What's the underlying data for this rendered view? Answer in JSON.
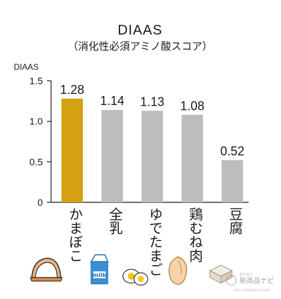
{
  "chart_data": {
    "type": "bar",
    "title": "DIAAS",
    "subtitle": "（消化性必須アミノ酸スコア）",
    "ylabel": "DIAAS",
    "ylim": [
      0,
      1.5
    ],
    "yticks": [
      "0",
      "0.5",
      "1.0",
      "1.5"
    ],
    "grid": false,
    "categories": [
      "かまぼこ",
      "全乳",
      "ゆでたまご",
      "鶏むね肉",
      "豆腐"
    ],
    "values": [
      1.28,
      1.14,
      1.13,
      1.08,
      0.52
    ],
    "value_labels": [
      "1.28",
      "1.14",
      "1.13",
      "1.08",
      "0.52"
    ],
    "colors": [
      "#D4A210",
      "#BDBDBD",
      "#BDBDBD",
      "#BDBDBD",
      "#BDBDBD"
    ]
  },
  "icons": [
    "kamaboko-icon",
    "milk-carton-icon",
    "boiled-eggs-icon",
    "chicken-breast-icon",
    "tofu-icon"
  ],
  "milk_text": "milk",
  "watermark": {
    "brand": "新商品ナビ",
    "kana": "おためし",
    "url": "shin-shouhin.com"
  }
}
